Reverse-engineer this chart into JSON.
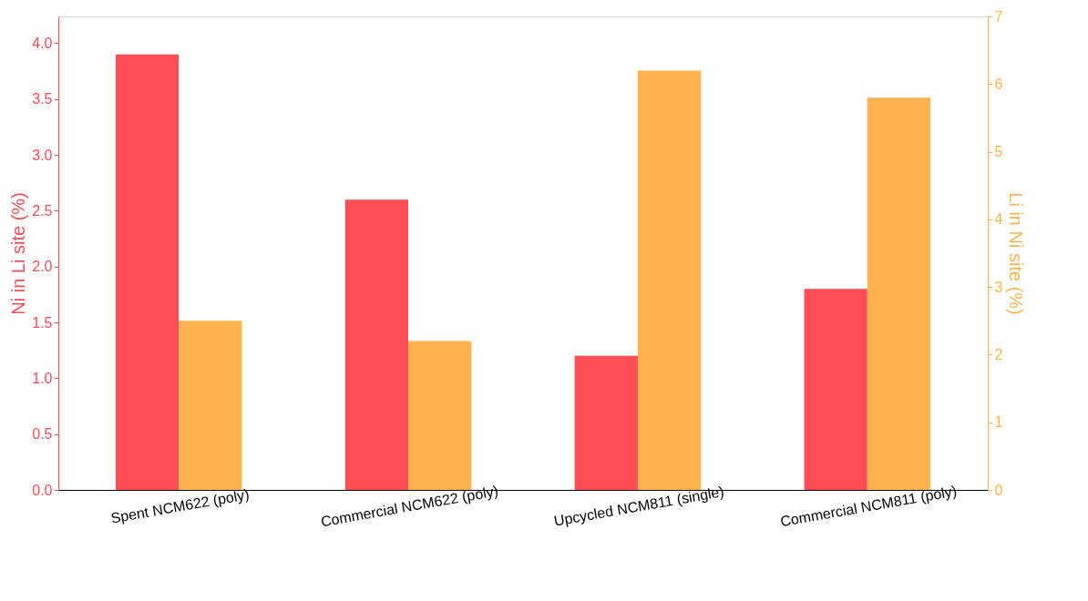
{
  "chart_data": {
    "type": "bar",
    "categories": [
      "Spent NCM622 (poly)",
      "Commercial NCM622 (poly)",
      "Upcycled NCM811 (single)",
      "Commercial NCM811 (poly)"
    ],
    "ylabel": "Ni in Li site (%)",
    "y2label": "Li in Ni site (%)",
    "ylim": [
      0,
      4.24
    ],
    "yticks": [
      {
        "value": 0,
        "label": "0.0"
      },
      0.5,
      {
        "value": 1,
        "label": "1.0"
      },
      1.5,
      {
        "value": 2,
        "label": "2.0"
      },
      2.5,
      {
        "value": 3,
        "label": "3.0"
      },
      3.5,
      {
        "value": 4,
        "label": "4.0"
      }
    ],
    "y2lim": [
      0,
      7
    ],
    "y2ticks": [
      0,
      1,
      2,
      3,
      4,
      5,
      6,
      7
    ],
    "series": [
      {
        "color": "#ff4d55",
        "values": [
          3.9,
          2.6,
          1.2,
          1.8
        ]
      },
      {
        "color": "#ffb24d",
        "values": [
          2.5,
          2.2,
          6.2,
          5.8
        ],
        "axis": "y2"
      }
    ],
    "grid": false
  }
}
